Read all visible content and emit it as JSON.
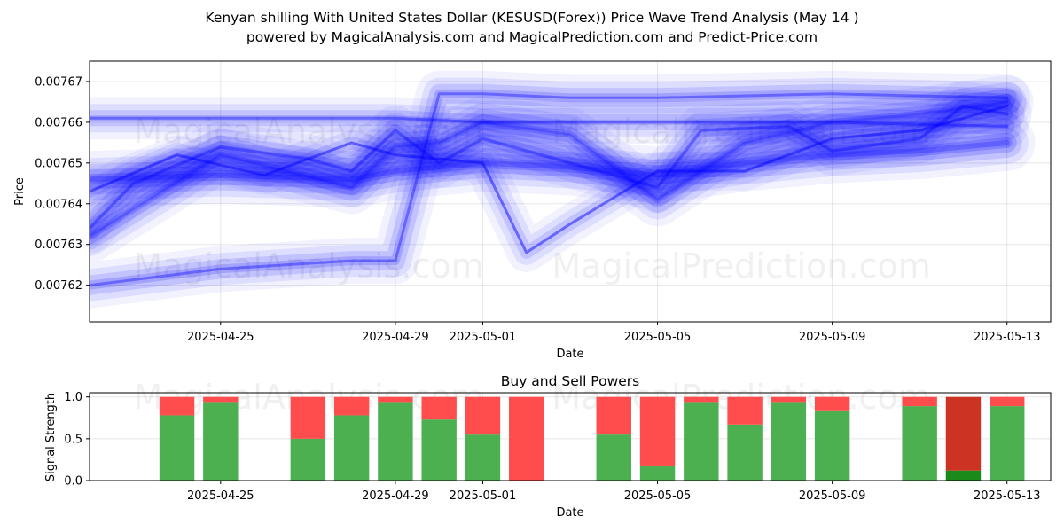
{
  "header": {
    "title": "Kenyan shilling With United States Dollar (KESUSD(Forex)) Price Wave Trend Analysis (May 14 )",
    "subtitle": "powered by MagicalAnalysis.com and MagicalPrediction.com and Predict-Price.com"
  },
  "watermarks": {
    "left": "MagicalAnalysis.com",
    "right": "MagicalPrediction.com"
  },
  "chart_data": [
    {
      "type": "line",
      "title": "",
      "xlabel": "Date",
      "ylabel": "Price",
      "x_ticks": [
        "2025-04-25",
        "2025-04-29",
        "2025-05-01",
        "2025-05-05",
        "2025-05-09",
        "2025-05-13"
      ],
      "y_ticks": [
        "0.00762",
        "0.00763",
        "0.00764",
        "0.00765",
        "0.00766",
        "0.00767"
      ],
      "xlim": [
        "2025-04-22",
        "2025-05-14"
      ],
      "ylim": [
        0.007611,
        0.007675
      ],
      "grid": true,
      "line_color": "#0000ff",
      "series": [
        {
          "x": [
            "2025-04-22",
            "2025-04-25",
            "2025-04-28",
            "2025-04-29",
            "2025-04-30",
            "2025-05-01",
            "2025-05-03",
            "2025-05-05",
            "2025-05-07",
            "2025-05-09",
            "2025-05-11",
            "2025-05-13"
          ],
          "values": [
            0.007646,
            0.007647,
            0.007646,
            0.007648,
            0.007649,
            0.00765,
            0.007649,
            0.007647,
            0.00765,
            0.007652,
            0.007653,
            0.007655
          ]
        },
        {
          "x": [
            "2025-04-22",
            "2025-04-25",
            "2025-04-28",
            "2025-04-29",
            "2025-04-30",
            "2025-05-01",
            "2025-05-03",
            "2025-05-05",
            "2025-05-07",
            "2025-05-09",
            "2025-05-11",
            "2025-05-13"
          ],
          "values": [
            0.007632,
            0.007652,
            0.007644,
            0.007654,
            0.007655,
            0.00766,
            0.007657,
            0.007641,
            0.007655,
            0.00766,
            0.007662,
            0.007665
          ]
        },
        {
          "x": [
            "2025-04-22",
            "2025-04-23",
            "2025-04-25",
            "2025-04-27",
            "2025-04-28",
            "2025-04-29",
            "2025-04-30",
            "2025-05-01",
            "2025-05-03",
            "2025-05-05",
            "2025-05-06",
            "2025-05-08",
            "2025-05-09",
            "2025-05-11",
            "2025-05-12",
            "2025-05-13"
          ],
          "values": [
            0.007634,
            0.007645,
            0.007654,
            0.007651,
            0.007648,
            0.007658,
            0.00765,
            0.007656,
            0.00765,
            0.007644,
            0.007658,
            0.007659,
            0.007653,
            0.007656,
            0.007664,
            0.007662
          ]
        },
        {
          "x": [
            "2025-04-22",
            "2025-04-25",
            "2025-04-28",
            "2025-04-29",
            "2025-04-30",
            "2025-05-01",
            "2025-05-03",
            "2025-05-05",
            "2025-05-09",
            "2025-05-13"
          ],
          "values": [
            0.00762,
            0.007624,
            0.007626,
            0.007626,
            0.007667,
            0.007667,
            0.007666,
            0.007666,
            0.007667,
            0.007666
          ]
        },
        {
          "x": [
            "2025-04-22",
            "2025-04-25",
            "2025-04-29",
            "2025-05-01",
            "2025-05-05",
            "2025-05-09",
            "2025-05-13"
          ],
          "values": [
            0.007661,
            0.007661,
            0.007661,
            0.00766,
            0.00766,
            0.00766,
            0.007659
          ]
        },
        {
          "x": [
            "2025-04-22",
            "2025-04-24",
            "2025-04-26",
            "2025-04-28",
            "2025-04-29",
            "2025-05-01",
            "2025-05-02",
            "2025-05-03",
            "2025-05-05",
            "2025-05-07",
            "2025-05-09",
            "2025-05-11",
            "2025-05-13"
          ],
          "values": [
            0.007643,
            0.007652,
            0.007647,
            0.007655,
            0.007652,
            0.00765,
            0.007628,
            0.007635,
            0.007648,
            0.007648,
            0.007656,
            0.007658,
            0.007664
          ]
        }
      ]
    },
    {
      "type": "bar",
      "title": "Buy and Sell Powers",
      "xlabel": "Date",
      "ylabel": "Signal Strength",
      "x_ticks": [
        "2025-04-25",
        "2025-04-29",
        "2025-05-01",
        "2025-05-05",
        "2025-05-09",
        "2025-05-13"
      ],
      "y_ticks": [
        "0.0",
        "0.5",
        "1.0"
      ],
      "ylim": [
        0,
        1.05
      ],
      "grid": true,
      "buy_color": "#4caf50",
      "sell_color": "#ff4d4d",
      "categories": [
        "2025-04-24",
        "2025-04-25",
        "2025-04-27",
        "2025-04-28",
        "2025-04-29",
        "2025-04-30",
        "2025-05-01",
        "2025-05-02",
        "2025-05-04",
        "2025-05-05",
        "2025-05-06",
        "2025-05-07",
        "2025-05-08",
        "2025-05-09",
        "2025-05-11",
        "2025-05-12",
        "2025-05-13"
      ],
      "series": [
        {
          "name": "Buy",
          "values": [
            0.78,
            0.94,
            0.5,
            0.78,
            0.94,
            0.73,
            0.55,
            0.0,
            0.55,
            0.17,
            0.94,
            0.67,
            0.94,
            0.84,
            0.89,
            0.12,
            0.89
          ]
        },
        {
          "name": "Sell",
          "values": [
            0.22,
            0.06,
            0.5,
            0.22,
            0.06,
            0.27,
            0.45,
            1.0,
            0.45,
            0.83,
            0.06,
            0.33,
            0.06,
            0.16,
            0.11,
            0.88,
            0.11
          ]
        }
      ],
      "highlight_category": "2025-05-12",
      "highlight_buy_color": "#1a8a1a",
      "highlight_sell_color": "#cc3322"
    }
  ]
}
